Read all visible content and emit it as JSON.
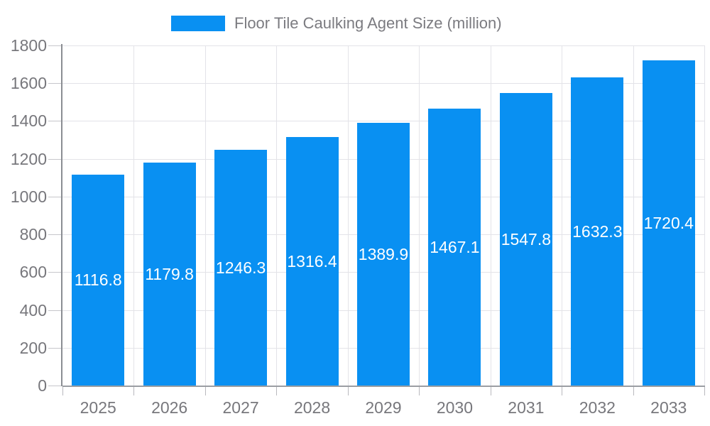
{
  "legend": {
    "label": "Floor Tile Caulking Agent Size (million)",
    "swatch_color": "#0990f2"
  },
  "chart_data": {
    "type": "bar",
    "title": "Floor Tile Caulking Agent Size (million)",
    "categories": [
      "2025",
      "2026",
      "2027",
      "2028",
      "2029",
      "2030",
      "2031",
      "2032",
      "2033"
    ],
    "values": [
      1116.8,
      1179.8,
      1246.3,
      1316.4,
      1389.9,
      1467.1,
      1547.8,
      1632.3,
      1720.4
    ],
    "yticks": [
      0,
      200,
      400,
      600,
      800,
      1000,
      1200,
      1400,
      1600,
      1800
    ],
    "ylim": [
      0,
      1800
    ],
    "xlabel": "",
    "ylabel": "",
    "grid": true,
    "legend_position": "top",
    "bar_color": "#0990f2",
    "bar_label_color": "#ffffff",
    "axis_text_color": "#77777c"
  }
}
